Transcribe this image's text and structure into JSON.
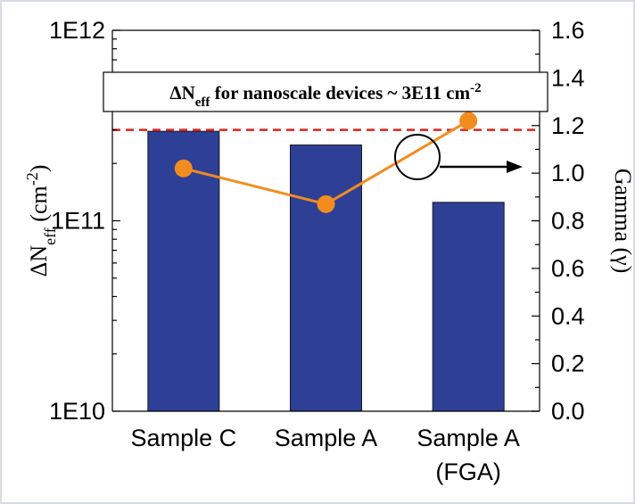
{
  "chart_data": {
    "type": "bar",
    "categories": [
      "Sample C",
      "Sample A",
      "Sample A (FGA)"
    ],
    "category_label_lines": [
      [
        "Sample C"
      ],
      [
        "Sample A"
      ],
      [
        "Sample A",
        "(FGA)"
      ]
    ],
    "left_axis": {
      "label_main": "ΔN",
      "label_sub": "eff",
      "label_unit_open": " (cm",
      "label_unit_exp": "-2",
      "label_unit_close": ")",
      "scale": "log",
      "ylim": [
        10000000000.0,
        1000000000000.0
      ],
      "tick_values": [
        10000000000.0,
        100000000000.0,
        1000000000000.0
      ],
      "tick_labels": [
        "1E10",
        "1E11",
        "1E12"
      ]
    },
    "right_axis": {
      "label": "Gamma (γ)",
      "scale": "linear",
      "ylim": [
        0.0,
        1.6
      ],
      "tick_values": [
        0.0,
        0.2,
        0.4,
        0.6,
        0.8,
        1.0,
        1.2,
        1.4,
        1.6
      ],
      "tick_labels": [
        "0.0",
        "0.2",
        "0.4",
        "0.6",
        "0.8",
        "1.0",
        "1.2",
        "1.4",
        "1.6"
      ]
    },
    "series": [
      {
        "kind": "bar",
        "axis": "left",
        "values": [
          295000000000.0,
          250000000000.0,
          125000000000.0
        ],
        "color": "#2e3f96"
      },
      {
        "kind": "line",
        "axis": "right",
        "values": [
          1.02,
          0.87,
          1.22
        ],
        "color": "#f28c1e"
      }
    ],
    "reference_line": {
      "axis": "left",
      "value": 300000000000.0,
      "color": "#e0201b",
      "style": "dashed"
    },
    "annotation": {
      "text_main": "ΔN",
      "text_sub": "eff",
      "text_rest": " for nanoscale devices ~ 3E11 cm",
      "text_exp": "-2"
    },
    "axis_pointer": {
      "symbol": "circle-with-arrow",
      "points_to": "right"
    },
    "grid": false,
    "legend": "none"
  }
}
